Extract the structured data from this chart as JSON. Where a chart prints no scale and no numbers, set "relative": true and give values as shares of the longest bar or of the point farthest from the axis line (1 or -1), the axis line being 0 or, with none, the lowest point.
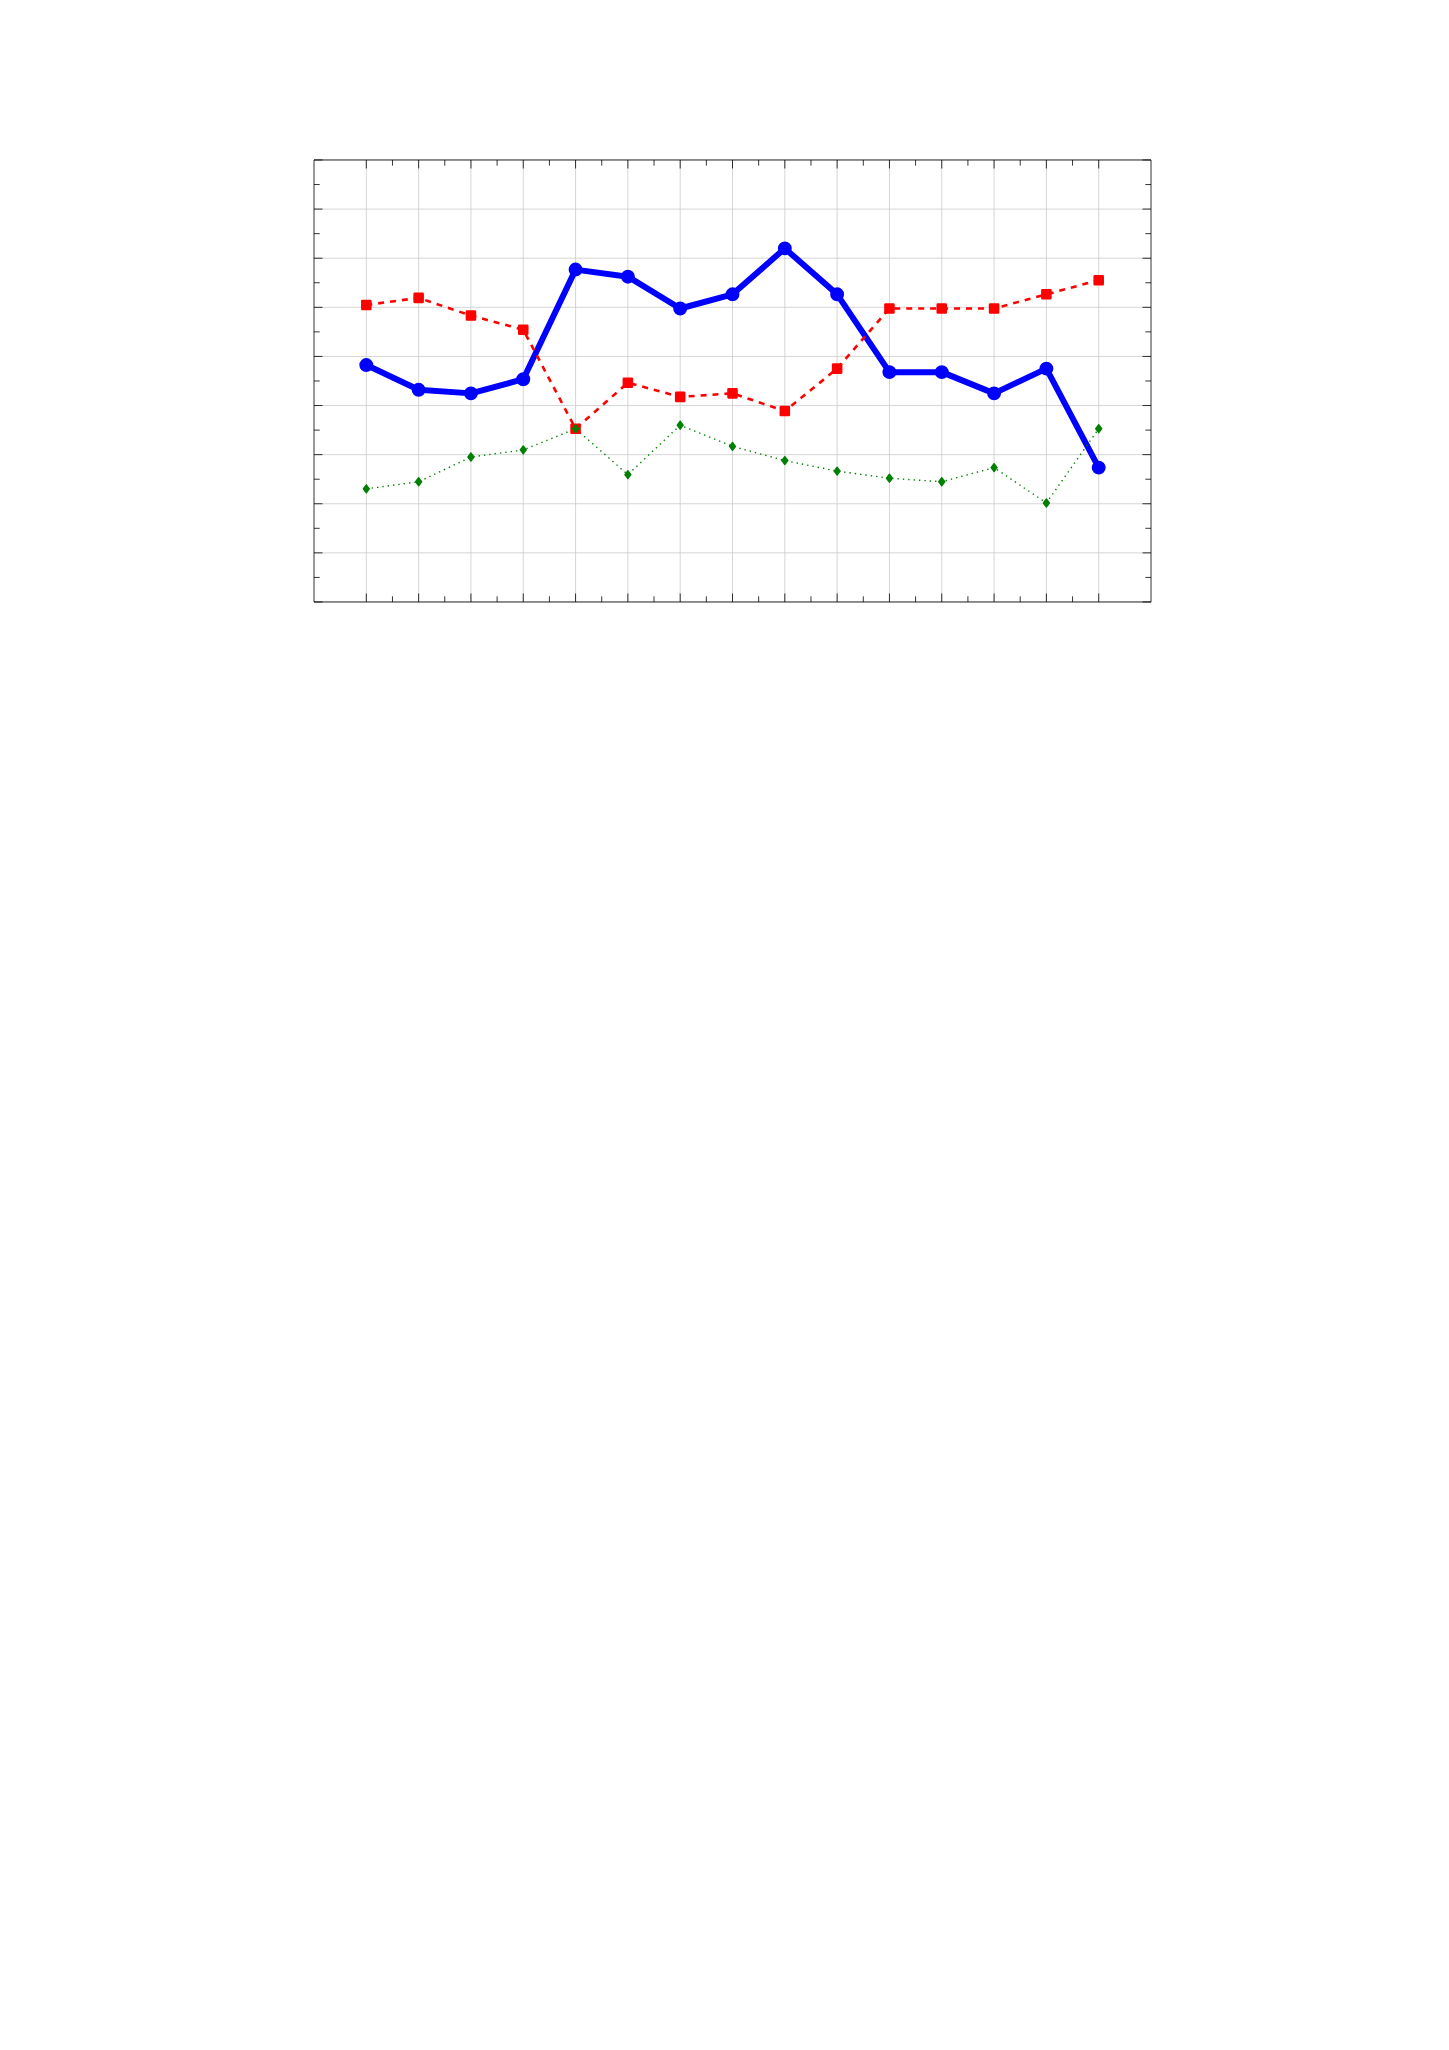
{
  "chart_data": {
    "type": "line",
    "relative": true,
    "grid": true,
    "categories": [
      null,
      null,
      null,
      null,
      null,
      null,
      null,
      null,
      null,
      null,
      null,
      null,
      null,
      null,
      null
    ],
    "series": [
      {
        "color": "#0000ff",
        "marker": "circle",
        "line_style": "solid",
        "values": [
          0.67,
          0.6,
          0.59,
          0.63,
          0.94,
          0.92,
          0.83,
          0.87,
          1,
          0.87,
          0.65,
          0.65,
          0.59,
          0.66,
          0.38
        ]
      },
      {
        "color": "#ff0000",
        "marker": "square",
        "line_style": "dashed",
        "values": [
          0.84,
          0.86,
          0.81,
          0.77,
          0.49,
          0.62,
          0.58,
          0.59,
          0.54,
          0.66,
          0.83,
          0.83,
          0.83,
          0.87,
          0.91
        ]
      },
      {
        "color": "#008000",
        "marker": "diamond",
        "line_style": "dotted",
        "values": [
          0.32,
          0.34,
          0.41,
          0.43,
          0.49,
          0.36,
          0.5,
          0.44,
          0.4,
          0.37,
          0.35,
          0.34,
          0.38,
          0.28,
          0.49
        ]
      }
    ]
  }
}
